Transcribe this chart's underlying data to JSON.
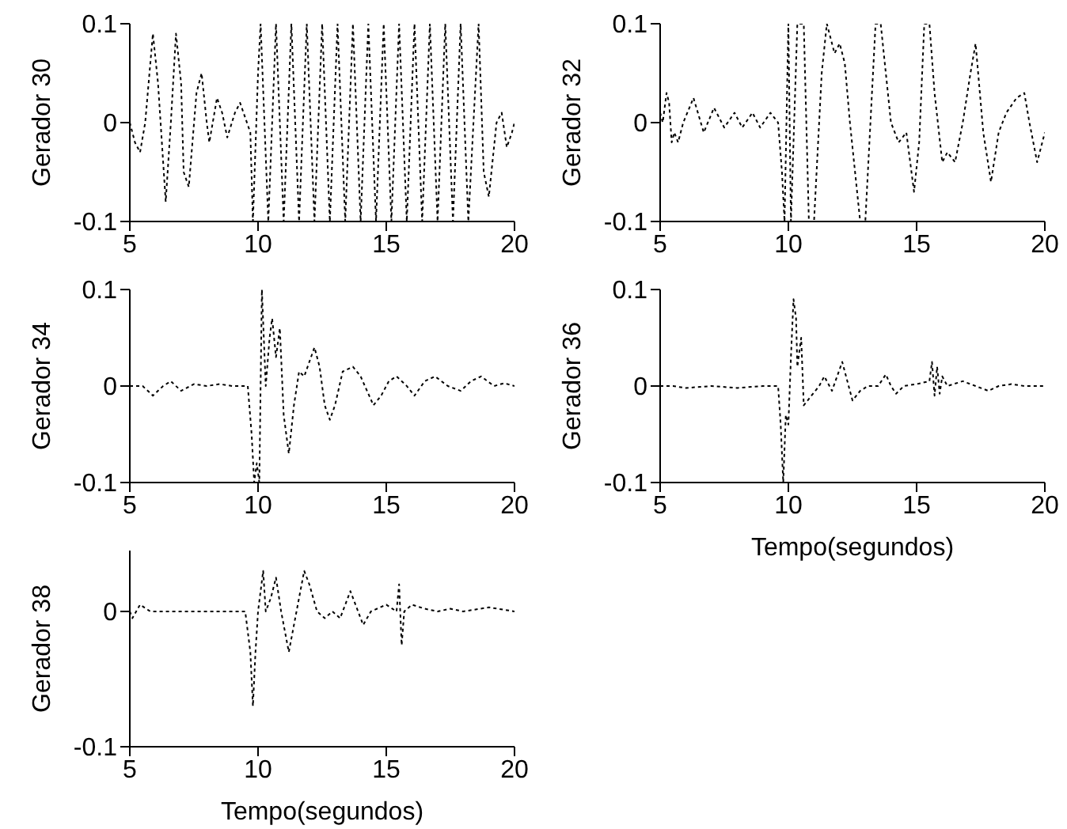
{
  "chart_data": [
    {
      "type": "line",
      "ylabel": "Gerador 30",
      "color": "#000000",
      "line_style": "dotted",
      "xlim": [
        5,
        20
      ],
      "xticks": [
        5,
        10,
        15,
        20
      ],
      "ylim": [
        -0.1,
        0.1
      ],
      "yticks": [
        -0.1,
        0,
        0.1
      ],
      "x": [
        5.0,
        5.2,
        5.4,
        5.6,
        5.9,
        6.1,
        6.4,
        6.6,
        6.8,
        7.0,
        7.1,
        7.3,
        7.6,
        7.8,
        8.0,
        8.1,
        8.4,
        8.6,
        8.8,
        9.1,
        9.3,
        9.5,
        9.7,
        9.8,
        10.0,
        10.1,
        10.4,
        10.7,
        11.0,
        11.3,
        11.6,
        11.9,
        12.2,
        12.5,
        12.8,
        13.1,
        13.4,
        13.7,
        14.0,
        14.3,
        14.6,
        14.9,
        15.2,
        15.5,
        15.8,
        16.1,
        16.4,
        16.7,
        17.0,
        17.3,
        17.6,
        17.9,
        18.2,
        18.6,
        18.8,
        19.0,
        19.3,
        19.5,
        19.7,
        19.9,
        20.0
      ],
      "values": [
        0.0,
        -0.02,
        -0.03,
        0.0,
        0.09,
        0.04,
        -0.08,
        0.0,
        0.09,
        0.04,
        -0.05,
        -0.065,
        0.03,
        0.05,
        0.0,
        -0.02,
        0.025,
        0.01,
        -0.015,
        0.01,
        0.02,
        0.005,
        -0.01,
        -0.1,
        0.05,
        0.1,
        -0.1,
        0.1,
        -0.1,
        0.1,
        -0.1,
        0.1,
        -0.1,
        0.1,
        -0.1,
        0.1,
        -0.1,
        0.1,
        -0.1,
        0.1,
        -0.1,
        0.1,
        -0.1,
        0.1,
        -0.1,
        0.1,
        -0.1,
        0.1,
        -0.1,
        0.1,
        -0.1,
        0.1,
        -0.1,
        0.1,
        -0.05,
        -0.075,
        0.0,
        0.01,
        -0.025,
        -0.01,
        0.0
      ]
    },
    {
      "type": "line",
      "ylabel": "Gerador 32",
      "color": "#000000",
      "line_style": "dotted",
      "xlim": [
        5,
        20
      ],
      "xticks": [
        5,
        10,
        15,
        20
      ],
      "ylim": [
        -0.1,
        0.1
      ],
      "yticks": [
        -0.1,
        0,
        0.1
      ],
      "x": [
        5.0,
        5.1,
        5.25,
        5.35,
        5.45,
        5.55,
        5.7,
        5.9,
        6.3,
        6.7,
        7.1,
        7.5,
        7.9,
        8.2,
        8.6,
        8.9,
        9.3,
        9.6,
        9.75,
        9.85,
        10.0,
        10.1,
        10.35,
        10.6,
        10.8,
        11.0,
        11.3,
        11.5,
        11.8,
        12.0,
        12.2,
        12.4,
        12.8,
        13.0,
        13.4,
        13.6,
        13.8,
        14.0,
        14.3,
        14.6,
        14.9,
        15.1,
        15.3,
        15.5,
        15.7,
        16.0,
        16.2,
        16.5,
        16.8,
        17.1,
        17.3,
        17.6,
        17.9,
        18.2,
        18.5,
        18.9,
        19.2,
        19.4,
        19.7,
        20.0
      ],
      "values": [
        0.01,
        0.0,
        0.03,
        0.02,
        -0.02,
        -0.01,
        -0.02,
        0.0,
        0.025,
        -0.01,
        0.015,
        -0.005,
        0.01,
        -0.005,
        0.01,
        -0.005,
        0.01,
        0.0,
        -0.05,
        -0.1,
        0.1,
        -0.1,
        0.1,
        0.1,
        -0.1,
        -0.1,
        0.05,
        0.1,
        0.07,
        0.08,
        0.06,
        0.0,
        -0.1,
        -0.1,
        0.1,
        0.1,
        0.05,
        0.0,
        -0.02,
        -0.01,
        -0.07,
        -0.02,
        0.1,
        0.1,
        0.03,
        -0.04,
        -0.03,
        -0.04,
        0.0,
        0.05,
        0.08,
        -0.01,
        -0.06,
        -0.01,
        0.01,
        0.025,
        0.03,
        0.0,
        -0.04,
        -0.01
      ]
    },
    {
      "type": "line",
      "ylabel": "Gerador 34",
      "color": "#000000",
      "line_style": "dotted",
      "xlim": [
        5,
        20
      ],
      "xticks": [
        5,
        10,
        15,
        20
      ],
      "ylim": [
        -0.1,
        0.1
      ],
      "yticks": [
        -0.1,
        0,
        0.1
      ],
      "x": [
        5.0,
        5.5,
        5.9,
        6.3,
        6.6,
        7.0,
        7.5,
        8.0,
        8.5,
        9.0,
        9.6,
        9.75,
        9.85,
        9.95,
        10.05,
        10.15,
        10.3,
        10.45,
        10.55,
        10.7,
        10.85,
        11.0,
        11.2,
        11.4,
        11.6,
        11.8,
        12.2,
        12.4,
        12.6,
        12.8,
        13.0,
        13.3,
        13.7,
        14.0,
        14.5,
        14.8,
        15.1,
        15.4,
        15.8,
        16.1,
        16.5,
        16.9,
        17.4,
        17.9,
        18.3,
        18.7,
        19.2,
        19.6,
        20.0
      ],
      "values": [
        0.0,
        0.0,
        -0.01,
        0.0,
        0.005,
        -0.005,
        0.002,
        0.0,
        0.002,
        0.0,
        0.0,
        -0.05,
        -0.1,
        -0.08,
        -0.1,
        0.1,
        0.0,
        0.05,
        0.07,
        0.03,
        0.06,
        -0.03,
        -0.07,
        -0.02,
        0.015,
        0.01,
        0.04,
        0.02,
        -0.02,
        -0.035,
        -0.02,
        0.015,
        0.02,
        0.01,
        -0.02,
        -0.01,
        0.005,
        0.01,
        0.0,
        -0.01,
        0.005,
        0.01,
        0.0,
        -0.005,
        0.005,
        0.01,
        0.0,
        0.003,
        0.0
      ]
    },
    {
      "type": "line",
      "ylabel": "Gerador 36",
      "xlabel": "Tempo(segundos)",
      "color": "#000000",
      "line_style": "dotted",
      "xlim": [
        5,
        20
      ],
      "xticks": [
        5,
        10,
        15,
        20
      ],
      "ylim": [
        -0.1,
        0.1
      ],
      "yticks": [
        -0.1,
        0,
        0.1
      ],
      "x": [
        5.0,
        5.5,
        6.0,
        7.0,
        8.0,
        9.0,
        9.6,
        9.7,
        9.8,
        9.9,
        10.0,
        10.1,
        10.2,
        10.3,
        10.35,
        10.5,
        10.6,
        10.9,
        11.2,
        11.4,
        11.7,
        12.1,
        12.5,
        12.8,
        13.1,
        13.5,
        13.8,
        14.0,
        14.2,
        14.5,
        15.0,
        15.5,
        15.6,
        15.7,
        15.8,
        15.9,
        16.0,
        16.2,
        16.8,
        17.3,
        17.8,
        18.2,
        18.7,
        19.2,
        20.0
      ],
      "values": [
        0.0,
        0.0,
        -0.002,
        0.0,
        -0.002,
        0.0,
        0.0,
        -0.04,
        -0.1,
        -0.03,
        -0.04,
        0.03,
        0.09,
        0.07,
        0.02,
        0.05,
        -0.02,
        -0.01,
        0.0,
        0.01,
        -0.005,
        0.025,
        -0.015,
        -0.005,
        0.0,
        0.0,
        0.012,
        0.0,
        -0.008,
        0.0,
        0.002,
        0.005,
        0.025,
        -0.01,
        0.02,
        -0.008,
        0.01,
        0.0,
        0.005,
        0.0,
        -0.005,
        0.0,
        0.002,
        0.0,
        0.0
      ]
    },
    {
      "type": "line",
      "ylabel": "Gerador 38",
      "xlabel": "Tempo(segundos)",
      "color": "#000000",
      "line_style": "dotted",
      "xlim": [
        5,
        20
      ],
      "xticks": [
        5,
        10,
        15,
        20
      ],
      "ylim": [
        -0.1,
        0.045
      ],
      "yticks": [
        -0.1,
        0
      ],
      "x": [
        5.0,
        5.1,
        5.4,
        5.8,
        6.5,
        7.5,
        8.5,
        9.5,
        9.7,
        9.8,
        9.9,
        10.0,
        10.2,
        10.3,
        10.5,
        10.7,
        10.9,
        11.2,
        11.5,
        11.8,
        12.0,
        12.3,
        12.6,
        12.9,
        13.2,
        13.6,
        13.9,
        14.1,
        14.4,
        15.0,
        15.4,
        15.5,
        15.6,
        15.7,
        16.0,
        16.5,
        17.0,
        17.5,
        18.0,
        19.0,
        20.0
      ],
      "values": [
        0.0,
        -0.005,
        0.005,
        0.0,
        0.0,
        0.0,
        0.0,
        0.0,
        -0.03,
        -0.07,
        -0.03,
        0.0,
        0.03,
        0.0,
        0.01,
        0.025,
        0.0,
        -0.03,
        0.0,
        0.03,
        0.02,
        0.0,
        -0.005,
        0.0,
        -0.005,
        0.015,
        0.0,
        -0.01,
        0.0,
        0.005,
        0.0,
        0.02,
        -0.025,
        0.0,
        0.005,
        0.002,
        0.0,
        0.002,
        0.0,
        0.003,
        0.0
      ]
    }
  ]
}
